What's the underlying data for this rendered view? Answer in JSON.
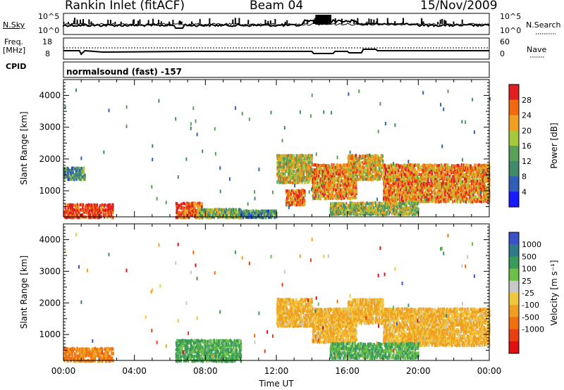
{
  "header": {
    "title": "Rankin Inlet (fitACF)",
    "beam": "Beam 04",
    "date": "15/Nov/2009"
  },
  "strip_labels": {
    "nsky": "N.Sky",
    "nsky_ticks": [
      "10^5",
      "10^0"
    ],
    "nsearch": "N.Search",
    "nsearch_ticks": [
      "10^5",
      "10^0"
    ],
    "freq": "Freq.",
    "freq_unit": "[MHz]",
    "freq_ticks": [
      "18",
      "8"
    ],
    "nave": "Nave",
    "nave_ticks": [
      "60",
      "0"
    ],
    "cpid": "CPID",
    "cpid_value": "normalsound (fast) -157"
  },
  "colors": {
    "power_scale": [
      "#1a1aff",
      "#2f5fb8",
      "#3e8a6a",
      "#5aa05a",
      "#a8c83c",
      "#f0a020",
      "#f06a10",
      "#e02020"
    ],
    "velocity_scale": [
      "#3c50c8",
      "#2e7a8a",
      "#3a9a5a",
      "#6cc048",
      "#c8c8c8",
      "#f0c840",
      "#f0a020",
      "#f07010",
      "#e84010",
      "#e01010"
    ]
  },
  "chart_data": [
    {
      "type": "heatmap",
      "name": "power",
      "ylabel": "Slant Range [km]",
      "xlim": [
        "00:00",
        "24:00"
      ],
      "ylim": [
        180,
        4500
      ],
      "x_ticks": [
        "00:00",
        "04:00",
        "08:00",
        "12:00",
        "16:00",
        "20:00",
        "00:00"
      ],
      "y_ticks": [
        1000,
        2000,
        3000,
        4000
      ],
      "colorbar_label": "Power [dB]",
      "colorbar_ticks": [
        "4",
        "8",
        "12",
        "16",
        "20",
        "24",
        "28"
      ],
      "colorbar_range": [
        0,
        30
      ],
      "regions": [
        {
          "t": [
            0.0,
            2.8
          ],
          "r": [
            200,
            650
          ],
          "value": 28
        },
        {
          "t": [
            6.3,
            7.8
          ],
          "r": [
            200,
            700
          ],
          "value": 26
        },
        {
          "t": [
            7.5,
            10.0
          ],
          "r": [
            200,
            500
          ],
          "value": 14
        },
        {
          "t": [
            10.0,
            12.0
          ],
          "r": [
            200,
            450
          ],
          "value": 10
        },
        {
          "t": [
            12.0,
            14.0
          ],
          "r": [
            1300,
            2200
          ],
          "value": 18
        },
        {
          "t": [
            12.5,
            13.6
          ],
          "r": [
            600,
            1100
          ],
          "value": 24
        },
        {
          "t": [
            14.0,
            16.5
          ],
          "r": [
            800,
            1900
          ],
          "value": 22
        },
        {
          "t": [
            16.0,
            18.0
          ],
          "r": [
            1400,
            2200
          ],
          "value": 20
        },
        {
          "t": [
            18.0,
            24.0
          ],
          "r": [
            700,
            1900
          ],
          "value": 22
        },
        {
          "t": [
            15.0,
            20.0
          ],
          "r": [
            300,
            700
          ],
          "value": 16
        },
        {
          "t": [
            0.0,
            1.2
          ],
          "r": [
            1400,
            1800
          ],
          "value": 10
        }
      ]
    },
    {
      "type": "heatmap",
      "name": "velocity",
      "ylabel": "Slant Range [km]",
      "xlabel": "Time UT",
      "xlim": [
        "00:00",
        "24:00"
      ],
      "ylim": [
        180,
        4500
      ],
      "x_ticks": [
        "00:00",
        "04:00",
        "08:00",
        "12:00",
        "16:00",
        "20:00",
        "00:00"
      ],
      "y_ticks": [
        1000,
        2000,
        3000,
        4000
      ],
      "colorbar_label": "Velocity [m s⁻¹]",
      "colorbar_ticks": [
        "1000",
        "500",
        "100",
        "25",
        "-25",
        "-100",
        "-500",
        "-1000"
      ],
      "regions": [
        {
          "t": [
            0.0,
            2.8
          ],
          "r": [
            200,
            650
          ],
          "value": -500
        },
        {
          "t": [
            6.3,
            10.0
          ],
          "r": [
            200,
            900
          ],
          "value": 100
        },
        {
          "t": [
            12.0,
            14.0
          ],
          "r": [
            1300,
            2200
          ],
          "value": -100
        },
        {
          "t": [
            14.0,
            16.5
          ],
          "r": [
            800,
            1900
          ],
          "value": -100
        },
        {
          "t": [
            16.0,
            18.0
          ],
          "r": [
            1400,
            2200
          ],
          "value": -100
        },
        {
          "t": [
            18.0,
            24.0
          ],
          "r": [
            700,
            1900
          ],
          "value": -100
        },
        {
          "t": [
            15.0,
            20.0
          ],
          "r": [
            300,
            800
          ],
          "value": 100
        }
      ]
    }
  ]
}
